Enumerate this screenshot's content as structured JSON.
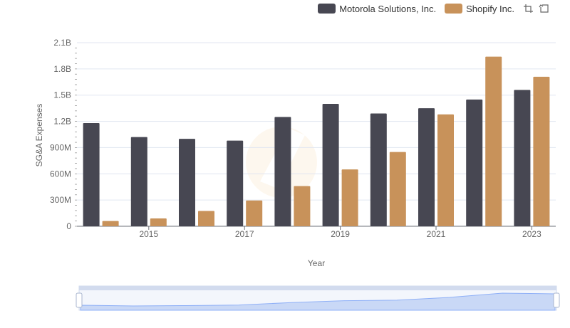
{
  "legend": {
    "items": [
      {
        "name": "Motorola Solutions, Inc.",
        "color": "#474752"
      },
      {
        "name": "Shopify Inc.",
        "color": "#c8925a"
      }
    ]
  },
  "toolbox": {
    "icons": [
      "zoom-icon",
      "restore-icon"
    ]
  },
  "chart_data": {
    "type": "bar",
    "x": [
      2014,
      2015,
      2016,
      2017,
      2018,
      2019,
      2020,
      2021,
      2022,
      2023
    ],
    "xtick_labels": [
      "2015",
      "2017",
      "2019",
      "2021",
      "2023"
    ],
    "xlabel": "Year",
    "ylabel": "SG&A Expenses",
    "ylim": [
      0,
      2100000000
    ],
    "yticks": [
      {
        "value": 0,
        "label": "0"
      },
      {
        "value": 300000000,
        "label": "300M"
      },
      {
        "value": 600000000,
        "label": "600M"
      },
      {
        "value": 900000000,
        "label": "900M"
      },
      {
        "value": 1200000000,
        "label": "1.2B"
      },
      {
        "value": 1500000000,
        "label": "1.5B"
      },
      {
        "value": 1800000000,
        "label": "1.8B"
      },
      {
        "value": 2100000000,
        "label": "2.1B"
      }
    ],
    "grid": true,
    "legend_position": "top-right",
    "series": [
      {
        "name": "Motorola Solutions, Inc.",
        "color": "#474752",
        "values": [
          1180000000,
          1020000000,
          1000000000,
          980000000,
          1250000000,
          1400000000,
          1290000000,
          1350000000,
          1450000000,
          1560000000
        ]
      },
      {
        "name": "Shopify Inc.",
        "color": "#c8925a",
        "values": [
          60000000,
          90000000,
          175000000,
          295000000,
          460000000,
          650000000,
          850000000,
          1280000000,
          1940000000,
          1710000000
        ]
      }
    ]
  }
}
